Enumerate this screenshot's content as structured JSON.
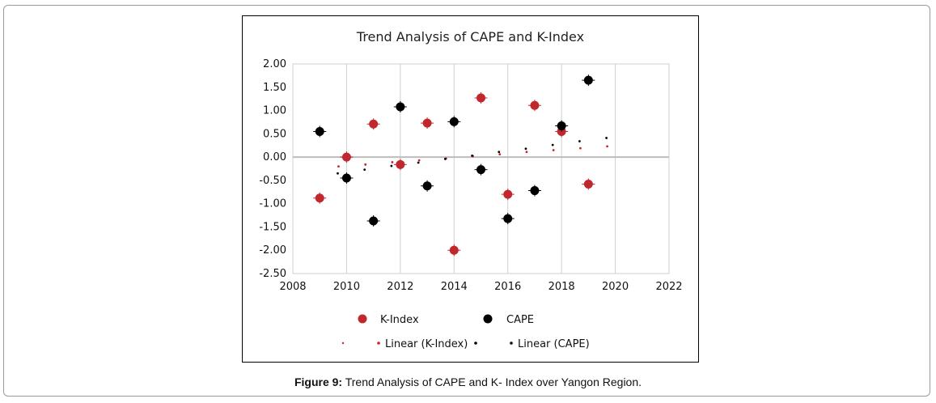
{
  "caption": {
    "label": "Figure 9:",
    "text": " Trend Analysis of CAPE and K- Index over Yangon Region."
  },
  "chart_data": {
    "type": "scatter",
    "title": "Trend Analysis of CAPE and K-Index",
    "xlim": [
      2008,
      2022
    ],
    "ylim": [
      -2.5,
      2.0
    ],
    "x_ticks": [
      "2008",
      "2010",
      "2012",
      "2014",
      "2016",
      "2018",
      "2020",
      "2022"
    ],
    "y_ticks": [
      "2.00",
      "1.50",
      "1.00",
      "0.50",
      "0.00",
      "-0.50",
      "-1.00",
      "-1.50",
      "-2.00",
      "-2.50"
    ],
    "grid": "vertical",
    "legend_position": "bottom",
    "series": [
      {
        "name": "K-Index",
        "color": "#c0282d",
        "x": [
          2009,
          2010,
          2011,
          2012,
          2013,
          2014,
          2015,
          2016,
          2017,
          2018,
          2019
        ],
        "y": [
          -0.88,
          0.0,
          0.71,
          -0.16,
          0.73,
          -2.0,
          1.27,
          -0.8,
          1.11,
          0.55,
          -0.58
        ]
      },
      {
        "name": "CAPE",
        "color": "#000000",
        "x": [
          2009,
          2010,
          2011,
          2012,
          2013,
          2014,
          2015,
          2016,
          2017,
          2018,
          2019
        ],
        "y": [
          0.55,
          -0.45,
          -1.37,
          1.08,
          -0.62,
          0.76,
          -0.27,
          -1.32,
          -0.72,
          0.67,
          1.65
        ]
      },
      {
        "name": "Linear (K-Index)",
        "color": "#c0282d",
        "x": [
          2009,
          2010,
          2011,
          2012,
          2013,
          2014,
          2015,
          2016,
          2017,
          2018,
          2019
        ],
        "y": [
          -0.2,
          -0.16,
          -0.11,
          -0.07,
          -0.03,
          0.02,
          0.06,
          0.11,
          0.15,
          0.19,
          0.23
        ]
      },
      {
        "name": "Linear (CAPE)",
        "color": "#000000",
        "x": [
          2009,
          2010,
          2011,
          2012,
          2013,
          2014,
          2015,
          2016,
          2017,
          2018,
          2019
        ],
        "y": [
          -0.35,
          -0.27,
          -0.19,
          -0.12,
          -0.04,
          0.03,
          0.11,
          0.18,
          0.26,
          0.34,
          0.41
        ]
      }
    ]
  }
}
